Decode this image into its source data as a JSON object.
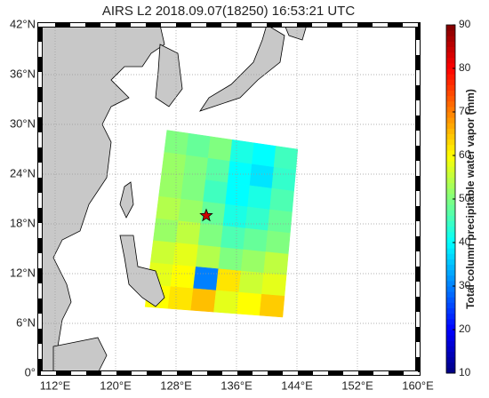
{
  "map": {
    "title": "AIRS L2 2018.09.07(18250) 16:53:21 UTC",
    "xlim": [
      110,
      160
    ],
    "ylim": [
      0,
      42
    ],
    "xticks": [
      {
        "value": 112,
        "label": "112°E"
      },
      {
        "value": 120,
        "label": "120°E"
      },
      {
        "value": 128,
        "label": "128°E"
      },
      {
        "value": 136,
        "label": "136°E"
      },
      {
        "value": 144,
        "label": "144°E"
      },
      {
        "value": 152,
        "label": "152°E"
      },
      {
        "value": 160,
        "label": "160°E"
      }
    ],
    "yticks": [
      {
        "value": 0,
        "label": "0°"
      },
      {
        "value": 6,
        "label": "6°N"
      },
      {
        "value": 12,
        "label": "12°N"
      },
      {
        "value": 18,
        "label": "18°N"
      },
      {
        "value": 24,
        "label": "24°N"
      },
      {
        "value": 30,
        "label": "30°N"
      },
      {
        "value": 36,
        "label": "36°N"
      },
      {
        "value": 42,
        "label": "42°N"
      }
    ],
    "colorbar": {
      "label": "Total column precipitable water vapor (mm)",
      "lim": [
        10,
        90
      ],
      "ticks": [
        10,
        20,
        30,
        40,
        50,
        60,
        70,
        80,
        90
      ]
    },
    "field": {
      "corners": [
        [
          126.8,
          29.3
        ],
        [
          144.1,
          27.0
        ],
        [
          142.1,
          6.75
        ],
        [
          123.9,
          8.0
        ]
      ],
      "values": [
        [
          50,
          48,
          50,
          42,
          40,
          45
        ],
        [
          52,
          50,
          47,
          40,
          38,
          44
        ],
        [
          52,
          50,
          45,
          40,
          42,
          46
        ],
        [
          54,
          52,
          48,
          42,
          44,
          48
        ],
        [
          52,
          55,
          50,
          46,
          48,
          50
        ],
        [
          56,
          58,
          54,
          50,
          52,
          55
        ],
        [
          58,
          60,
          30,
          62,
          56,
          58
        ],
        [
          60,
          62,
          65,
          58,
          60,
          64
        ]
      ]
    },
    "marker": {
      "lon": 132,
      "lat": 19
    }
  }
}
